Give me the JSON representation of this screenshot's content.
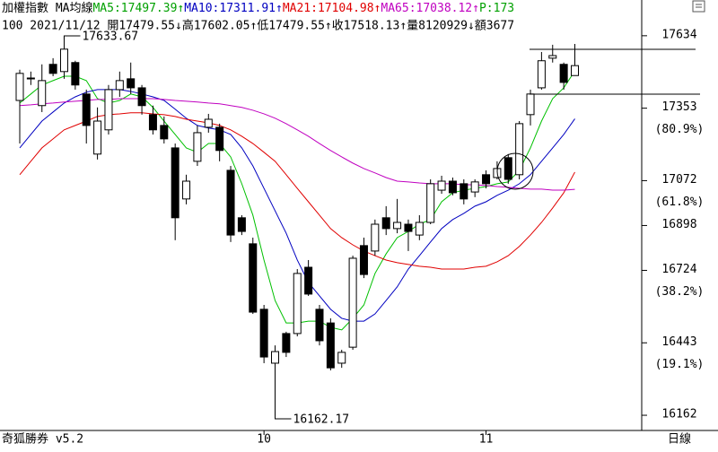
{
  "chart_data": {
    "type": "candlestick",
    "header_line1": [
      {
        "text": "加權指數 MA均線",
        "color": "#000000"
      },
      {
        "text": "MA5:17497.39↑",
        "color": "#00a000"
      },
      {
        "text": "MA10:17311.91↑",
        "color": "#0000c0"
      },
      {
        "text": "MA21:17104.98↑",
        "color": "#e00000"
      },
      {
        "text": "MA65:17038.12↑",
        "color": "#c000c0"
      },
      {
        "text": "P:173",
        "color": "#00a000"
      }
    ],
    "header_line2": "100 2021/11/12 開17479.55↓高17602.05↑低17479.55↑收17518.13↑量8120929↓額3677",
    "footer_left": "奇狐勝券 v5.2",
    "footer_right": "日線",
    "categories": [
      null,
      null,
      null,
      null,
      null,
      null,
      null,
      null,
      null,
      null,
      null,
      null,
      null,
      null,
      null,
      null,
      null,
      null,
      null,
      null,
      null,
      null,
      "10",
      null,
      null,
      null,
      null,
      null,
      null,
      null,
      null,
      null,
      null,
      null,
      null,
      null,
      null,
      null,
      null,
      null,
      null,
      null,
      "11",
      null,
      null,
      null,
      null,
      null,
      null,
      null,
      null
    ],
    "open": [
      17383,
      17467,
      17363,
      17523,
      17495,
      17530,
      17408,
      17175,
      17269,
      17425,
      17467,
      17432,
      17328,
      17286,
      17199,
      17001,
      17147,
      17279,
      17279,
      17112,
      16928,
      16827,
      16573,
      16364,
      16479,
      16479,
      16736,
      16573,
      16520,
      16364,
      16426,
      16820,
      16799,
      16928,
      16886,
      16903,
      16861,
      16910,
      17035,
      17070,
      17060,
      17028,
      17095,
      17084,
      17161,
      17095,
      17328,
      17432,
      17547,
      17523,
      17479.55
    ],
    "high": [
      17502,
      17495,
      17523,
      17547,
      17633.67,
      17537,
      17425,
      17356,
      17443,
      17495,
      17530,
      17443,
      17363,
      17321,
      17216,
      17095,
      17286,
      17331,
      17293,
      17129,
      16938,
      16851,
      16590,
      16433,
      16486,
      16729,
      16764,
      16590,
      16538,
      16416,
      16781,
      16851,
      16921,
      16973,
      17001,
      16921,
      16938,
      17077,
      17091,
      17084,
      17077,
      17077,
      17112,
      17147,
      17175,
      17303,
      17425,
      17571,
      17599,
      17530,
      17602.05
    ],
    "low": [
      17216,
      17443,
      17338,
      17477,
      17467,
      17425,
      17216,
      17154,
      17251,
      17397,
      17408,
      17328,
      17251,
      17216,
      16841,
      16980,
      17129,
      17258,
      17147,
      16834,
      16861,
      16555,
      16364,
      16162.17,
      16388,
      16468,
      16625,
      16433,
      16336,
      16346,
      16416,
      16694,
      16781,
      16861,
      16868,
      16799,
      16841,
      16903,
      17021,
      17015,
      16980,
      17008,
      17042,
      17077,
      17060,
      17077,
      17286,
      17425,
      17530,
      17425,
      17479.55
    ],
    "close": [
      17488,
      17470,
      17460,
      17488,
      17582,
      17443,
      17286,
      17303,
      17425,
      17460,
      17432,
      17363,
      17269,
      17234,
      16928,
      17070,
      17258,
      17310,
      17189,
      16861,
      16875,
      16562,
      16388,
      16409,
      16406,
      16712,
      16632,
      16451,
      16346,
      16406,
      16771,
      16708,
      16903,
      16886,
      16910,
      16875,
      16910,
      17060,
      17070,
      17025,
      17001,
      17067,
      17060,
      17119,
      17077,
      17293,
      17408,
      17537,
      17557,
      17453,
      17518.13
    ],
    "up_color": "#ffffff",
    "down_color": "#000000",
    "series": [
      {
        "name": "MA5",
        "color": "#00c000",
        "values": [
          17373,
          17408,
          17443,
          17460,
          17477,
          17477,
          17460,
          17390,
          17373,
          17383,
          17408,
          17397,
          17356,
          17303,
          17251,
          17199,
          17182,
          17216,
          17216,
          17164,
          17060,
          16938,
          16764,
          16607,
          16520,
          16520,
          16527,
          16527,
          16503,
          16493,
          16538,
          16590,
          16712,
          16788,
          16851,
          16875,
          16903,
          16921,
          16990,
          17025,
          17035,
          17042,
          17049,
          17060,
          17067,
          17112,
          17199,
          17303,
          17390,
          17432,
          17497.39
        ]
      },
      {
        "name": "MA10",
        "color": "#0000c0",
        "values": [
          17199,
          17251,
          17303,
          17338,
          17373,
          17397,
          17415,
          17425,
          17425,
          17425,
          17418,
          17408,
          17397,
          17383,
          17349,
          17314,
          17286,
          17276,
          17269,
          17251,
          17199,
          17129,
          17042,
          16955,
          16868,
          16764,
          16677,
          16625,
          16573,
          16538,
          16527,
          16527,
          16555,
          16607,
          16660,
          16729,
          16781,
          16834,
          16886,
          16921,
          16945,
          16973,
          16990,
          17015,
          17035,
          17060,
          17095,
          17147,
          17199,
          17251,
          17311.91
        ]
      },
      {
        "name": "MA21",
        "color": "#e00000",
        "values": [
          17095,
          17147,
          17199,
          17234,
          17269,
          17286,
          17303,
          17321,
          17328,
          17331,
          17335,
          17335,
          17331,
          17328,
          17321,
          17310,
          17303,
          17296,
          17286,
          17269,
          17244,
          17216,
          17182,
          17147,
          17095,
          17042,
          16990,
          16938,
          16886,
          16851,
          16823,
          16799,
          16781,
          16764,
          16754,
          16747,
          16740,
          16736,
          16729,
          16729,
          16729,
          16736,
          16740,
          16757,
          16781,
          16817,
          16861,
          16910,
          16966,
          17025,
          17104.98
        ]
      },
      {
        "name": "MA65",
        "color": "#c000c0",
        "values": [
          17363,
          17366,
          17370,
          17373,
          17377,
          17380,
          17383,
          17387,
          17387,
          17390,
          17390,
          17390,
          17390,
          17387,
          17383,
          17380,
          17377,
          17373,
          17370,
          17363,
          17356,
          17345,
          17331,
          17314,
          17293,
          17269,
          17244,
          17216,
          17189,
          17164,
          17140,
          17119,
          17102,
          17084,
          17070,
          17067,
          17063,
          17060,
          17060,
          17060,
          17056,
          17056,
          17053,
          17049,
          17046,
          17042,
          17039,
          17039,
          17035,
          17035,
          17038.12
        ]
      }
    ],
    "ylim": [
      16103,
      17710
    ],
    "yticks": [
      17634,
      17353,
      17072,
      16898,
      16724,
      16443,
      16162
    ],
    "fib_labels": [
      {
        "value": 17353,
        "label": "(80.9%)"
      },
      {
        "value": 17072,
        "label": "(61.8%)"
      },
      {
        "value": 16724,
        "label": "(38.2%)"
      },
      {
        "value": 16443,
        "label": "(19.1%)"
      }
    ]
  }
}
